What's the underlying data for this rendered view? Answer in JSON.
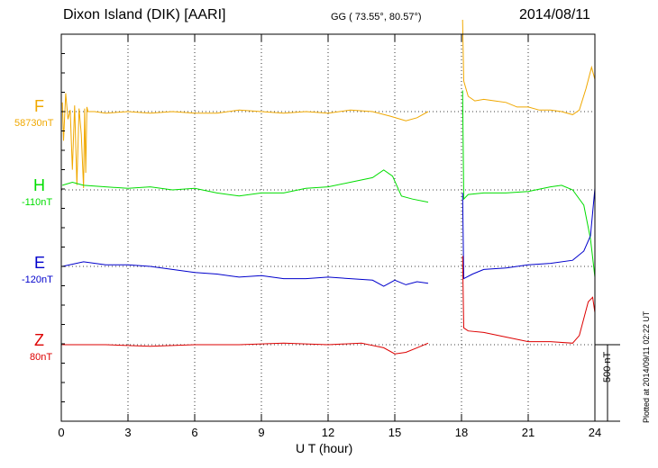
{
  "header": {
    "station": "Dixon Island (DIK)  [AARI]",
    "coords": "GG ( 73.55°,  80.57°)",
    "date": "2014/08/11"
  },
  "footer": {
    "plotted": "Plotted at 2014/09/11 02:22 UT"
  },
  "chart_data": {
    "type": "line",
    "title": "Dixon Island (DIK)  [AARI]",
    "xlabel": "U T (hour)",
    "ylabel": "",
    "xlim": [
      0,
      24
    ],
    "x_ticks": [
      "0",
      "3",
      "6",
      "9",
      "12",
      "15",
      "18",
      "21",
      "24"
    ],
    "grid": true,
    "scale_bar": "500 nT",
    "series": [
      {
        "name": "F",
        "baseline": "58730nT",
        "color": "#f0a800",
        "values": [
          [
            0.05,
            60
          ],
          [
            0.1,
            -190
          ],
          [
            0.2,
            120
          ],
          [
            0.3,
            -50
          ],
          [
            0.4,
            10
          ],
          [
            0.5,
            -380
          ],
          [
            0.6,
            40
          ],
          [
            0.7,
            -480
          ],
          [
            0.8,
            20
          ],
          [
            0.9,
            -150
          ],
          [
            1.0,
            -500
          ],
          [
            1.05,
            20
          ],
          [
            1.1,
            -400
          ],
          [
            1.15,
            30
          ],
          [
            1.2,
            0
          ],
          [
            1.5,
            0
          ],
          [
            2.0,
            -10
          ],
          [
            3.0,
            0
          ],
          [
            4.0,
            -10
          ],
          [
            5.0,
            0
          ],
          [
            6.0,
            -10
          ],
          [
            7.0,
            -10
          ],
          [
            8.0,
            10
          ],
          [
            9.0,
            0
          ],
          [
            10.0,
            -10
          ],
          [
            11.0,
            0
          ],
          [
            12.0,
            -10
          ],
          [
            13.0,
            10
          ],
          [
            14.0,
            0
          ],
          [
            14.8,
            -30
          ],
          [
            15.5,
            -60
          ],
          [
            16.0,
            -40
          ],
          [
            16.5,
            0
          ],
          null,
          [
            18.05,
            600
          ],
          [
            18.1,
            200
          ],
          [
            18.3,
            100
          ],
          [
            18.6,
            70
          ],
          [
            19.0,
            80
          ],
          [
            19.5,
            70
          ],
          [
            20.0,
            60
          ],
          [
            20.5,
            30
          ],
          [
            21.0,
            30
          ],
          [
            21.5,
            10
          ],
          [
            22.0,
            10
          ],
          [
            22.5,
            0
          ],
          [
            23.0,
            -20
          ],
          [
            23.3,
            10
          ],
          [
            23.6,
            150
          ],
          [
            23.85,
            290
          ],
          [
            24.0,
            210
          ]
        ]
      },
      {
        "name": "H",
        "baseline": "-110nT",
        "color": "#00dd00",
        "values": [
          [
            0.05,
            30
          ],
          [
            0.5,
            50
          ],
          [
            1.0,
            30
          ],
          [
            2.0,
            20
          ],
          [
            3.0,
            10
          ],
          [
            4.0,
            20
          ],
          [
            5.0,
            0
          ],
          [
            6.0,
            10
          ],
          [
            7.0,
            -20
          ],
          [
            8.0,
            -40
          ],
          [
            9.0,
            -20
          ],
          [
            10.0,
            -20
          ],
          [
            11.0,
            10
          ],
          [
            12.0,
            20
          ],
          [
            13.0,
            50
          ],
          [
            14.0,
            80
          ],
          [
            14.5,
            130
          ],
          [
            14.9,
            90
          ],
          [
            15.3,
            -40
          ],
          [
            15.8,
            -60
          ],
          [
            16.5,
            -80
          ],
          null,
          [
            18.05,
            650
          ],
          [
            18.1,
            -60
          ],
          [
            18.3,
            -30
          ],
          [
            19.0,
            -20
          ],
          [
            20.0,
            -20
          ],
          [
            21.0,
            -10
          ],
          [
            22.0,
            20
          ],
          [
            22.5,
            30
          ],
          [
            23.0,
            0
          ],
          [
            23.5,
            -100
          ],
          [
            23.8,
            -320
          ],
          [
            24.0,
            -570
          ]
        ]
      },
      {
        "name": "E",
        "baseline": "-120nT",
        "color": "#0000cc",
        "values": [
          [
            0.05,
            0
          ],
          [
            1.0,
            30
          ],
          [
            2.0,
            10
          ],
          [
            3.0,
            10
          ],
          [
            4.0,
            0
          ],
          [
            5.0,
            -20
          ],
          [
            6.0,
            -40
          ],
          [
            7.0,
            -50
          ],
          [
            8.0,
            -70
          ],
          [
            9.0,
            -60
          ],
          [
            10.0,
            -80
          ],
          [
            11.0,
            -80
          ],
          [
            12.0,
            -70
          ],
          [
            13.0,
            -80
          ],
          [
            14.0,
            -90
          ],
          [
            14.5,
            -130
          ],
          [
            15.0,
            -90
          ],
          [
            15.5,
            -120
          ],
          [
            16.0,
            -100
          ],
          [
            16.5,
            -110
          ],
          null,
          [
            18.05,
            480
          ],
          [
            18.1,
            -80
          ],
          [
            18.5,
            -50
          ],
          [
            19.0,
            -20
          ],
          [
            20.0,
            -10
          ],
          [
            21.0,
            10
          ],
          [
            22.0,
            20
          ],
          [
            23.0,
            40
          ],
          [
            23.5,
            100
          ],
          [
            23.8,
            200
          ],
          [
            24.0,
            510
          ]
        ]
      },
      {
        "name": "Z",
        "baseline": "80nT",
        "color": "#dd0000",
        "values": [
          [
            0.05,
            0
          ],
          [
            2.0,
            0
          ],
          [
            4.0,
            -10
          ],
          [
            6.0,
            0
          ],
          [
            8.0,
            0
          ],
          [
            10.0,
            10
          ],
          [
            12.0,
            0
          ],
          [
            13.5,
            10
          ],
          [
            14.5,
            -20
          ],
          [
            15.0,
            -60
          ],
          [
            15.5,
            -50
          ],
          [
            16.0,
            -20
          ],
          [
            16.5,
            10
          ],
          null,
          [
            18.05,
            580
          ],
          [
            18.1,
            110
          ],
          [
            18.3,
            90
          ],
          [
            19.0,
            80
          ],
          [
            20.0,
            50
          ],
          [
            21.0,
            20
          ],
          [
            22.0,
            20
          ],
          [
            23.0,
            10
          ],
          [
            23.3,
            60
          ],
          [
            23.7,
            280
          ],
          [
            23.9,
            310
          ],
          [
            24.0,
            210
          ]
        ]
      }
    ]
  }
}
